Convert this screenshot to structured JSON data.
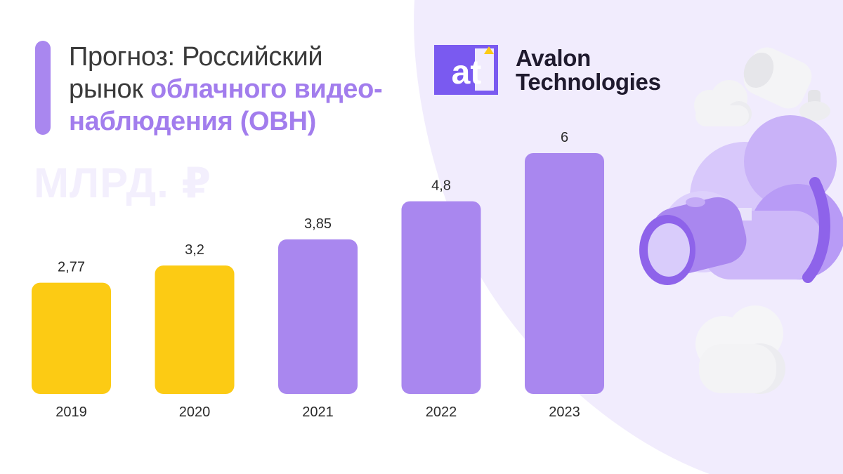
{
  "header": {
    "title_plain": "Прогноз: Российский рынок ",
    "title_highlight": "облачного видео-наблюдения (ОВН)",
    "unit": "МЛРД. ₽"
  },
  "brand": {
    "logo_mark": "at",
    "name_line1": "Avalon",
    "name_line2": "Technologies"
  },
  "colors": {
    "accent": "#a987ef",
    "forecast_bar": "#a987ef",
    "historical_bar": "#fccb14",
    "background_shape": "#f1ecfd",
    "logo_square": "#7a5af0",
    "logo_triangle": "#fccb14"
  },
  "decorations": [
    "security-camera-icon",
    "cloud-icon"
  ],
  "chart_data": {
    "type": "bar",
    "title": "",
    "xlabel": "",
    "ylabel": "",
    "categories": [
      "2019",
      "2020",
      "2021",
      "2022",
      "2023"
    ],
    "values": [
      2.77,
      3.2,
      3.85,
      4.8,
      6
    ],
    "value_labels": [
      "2,77",
      "3,2",
      "3,85",
      "4,8",
      "6"
    ],
    "bar_colors": [
      "#fccb14",
      "#fccb14",
      "#a987ef",
      "#a987ef",
      "#a987ef"
    ],
    "ylim": [
      0,
      6
    ],
    "grid": false,
    "legend": "none"
  }
}
